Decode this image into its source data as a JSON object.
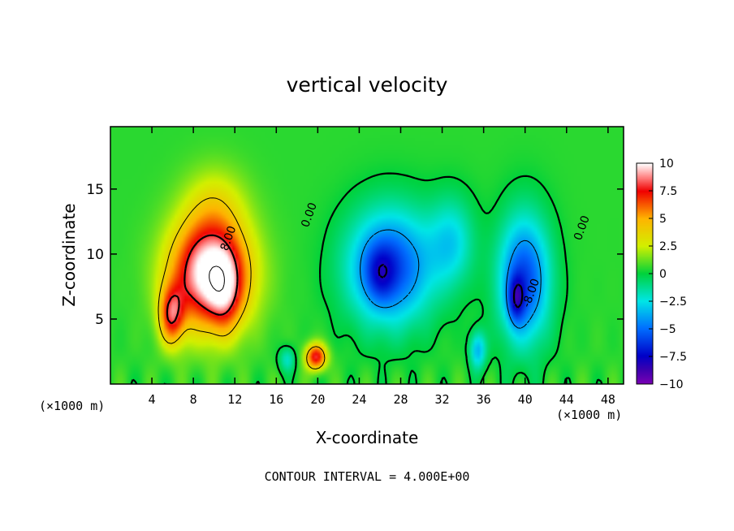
{
  "chart_data": {
    "type": "heatmap",
    "title": "vertical velocity",
    "xlabel": "X-coordinate",
    "ylabel": "Z-coordinate",
    "x_unit": "(×1000 m)",
    "x_unit_right": "(×1000 m)",
    "footer": "CONTOUR INTERVAL = 4.000E+00",
    "xlim": [
      0,
      49.5
    ],
    "ylim": [
      0,
      19.8
    ],
    "x_ticks": [
      4,
      8,
      12,
      16,
      20,
      24,
      28,
      32,
      36,
      40,
      44,
      48
    ],
    "y_ticks": [
      5,
      10,
      15
    ],
    "colorbar": {
      "range": [
        -10,
        10
      ],
      "ticks": [
        10,
        7.5,
        5,
        2.5,
        0,
        -2.5,
        -5,
        -7.5,
        -10
      ],
      "tick_labels": [
        "10",
        "7.5",
        "5",
        "2.5",
        "0",
        "−2.5",
        "−5",
        "−7.5",
        "−10"
      ]
    },
    "contour_labels": [
      {
        "text": "8.00",
        "x": 11.4,
        "z": 11.2
      },
      {
        "text": "0.00",
        "x": 19.2,
        "z": 13.0
      },
      {
        "text": "0.00",
        "x": 45.5,
        "z": 12.0
      },
      {
        "text": "-8.00",
        "x": 40.6,
        "z": 7.0
      }
    ],
    "field_features": [
      {
        "kind": "updraft",
        "x": 9.5,
        "z": 8.5,
        "sx": 3.8,
        "sz": 4.2,
        "w": 10.5
      },
      {
        "kind": "updraft",
        "x": 5.8,
        "z": 5.2,
        "sx": 1.2,
        "sz": 2.3,
        "w": 6.0
      },
      {
        "kind": "updraft",
        "x": 11.0,
        "z": 7.0,
        "sx": 1.5,
        "sz": 3.0,
        "w": 3.0
      },
      {
        "kind": "updraft",
        "x": 10.0,
        "z": 14.0,
        "sx": 3.0,
        "sz": 3.0,
        "w": 2.0
      },
      {
        "kind": "updraft",
        "x": 19.8,
        "z": 2.0,
        "sx": 1.0,
        "sz": 1.0,
        "w": 7.5
      },
      {
        "kind": "downdraft",
        "x": 27.0,
        "z": 9.0,
        "sx": 4.2,
        "sz": 4.5,
        "w": -6.5
      },
      {
        "kind": "downdraft",
        "x": 26.0,
        "z": 8.5,
        "sx": 1.5,
        "sz": 2.2,
        "w": -2.5
      },
      {
        "kind": "downdraft",
        "x": 33.0,
        "z": 11.0,
        "sx": 2.2,
        "sz": 3.5,
        "w": -3.0
      },
      {
        "kind": "downdraft",
        "x": 40.0,
        "z": 8.0,
        "sx": 2.5,
        "sz": 5.0,
        "w": -6.5
      },
      {
        "kind": "downdraft",
        "x": 39.2,
        "z": 6.5,
        "sx": 0.8,
        "sz": 1.8,
        "w": -4.0
      },
      {
        "kind": "downdraft",
        "x": 17.0,
        "z": 1.8,
        "sx": 0.8,
        "sz": 1.0,
        "w": -2.5
      },
      {
        "kind": "downdraft",
        "x": 35.5,
        "z": 2.5,
        "sx": 0.8,
        "sz": 1.5,
        "w": -4.0
      }
    ]
  }
}
